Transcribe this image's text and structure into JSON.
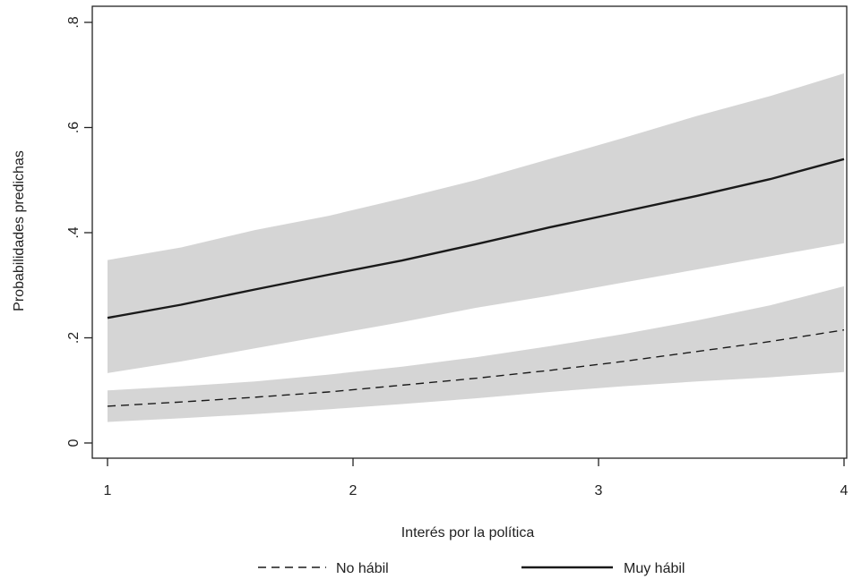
{
  "chart_data": {
    "type": "line",
    "xlabel": "Interés por la política",
    "ylabel": "Probabilidades predichas",
    "xlim": [
      1,
      4
    ],
    "ylim": [
      0,
      0.8
    ],
    "x_ticks": [
      1,
      2,
      3,
      4
    ],
    "x_tick_labels": [
      "1",
      "2",
      "3",
      "4"
    ],
    "y_ticks": [
      0,
      0.2,
      0.4,
      0.6,
      0.8
    ],
    "y_tick_labels": [
      "0",
      ".2",
      ".4",
      ".6",
      ".8"
    ],
    "grid": false,
    "legend_position": "bottom",
    "band_color": "#d5d5d5",
    "line_color": "#1a1a1a",
    "series": [
      {
        "name": "No hábil",
        "style": "dashed",
        "x": [
          1,
          1.3,
          1.6,
          1.9,
          2.2,
          2.5,
          2.8,
          3.1,
          3.4,
          3.7,
          4
        ],
        "values": [
          0.07,
          0.078,
          0.087,
          0.097,
          0.11,
          0.123,
          0.138,
          0.155,
          0.174,
          0.193,
          0.215
        ],
        "lower": [
          0.04,
          0.047,
          0.055,
          0.064,
          0.074,
          0.085,
          0.097,
          0.108,
          0.117,
          0.125,
          0.135
        ],
        "upper": [
          0.1,
          0.108,
          0.117,
          0.13,
          0.145,
          0.163,
          0.184,
          0.207,
          0.233,
          0.262,
          0.298
        ]
      },
      {
        "name": "Muy hábil",
        "style": "solid",
        "x": [
          1,
          1.3,
          1.6,
          1.9,
          2.2,
          2.5,
          2.8,
          3.1,
          3.4,
          3.7,
          4
        ],
        "values": [
          0.238,
          0.263,
          0.292,
          0.32,
          0.347,
          0.378,
          0.41,
          0.44,
          0.47,
          0.502,
          0.54
        ],
        "lower": [
          0.133,
          0.155,
          0.18,
          0.205,
          0.23,
          0.257,
          0.28,
          0.305,
          0.33,
          0.355,
          0.38
        ],
        "upper": [
          0.348,
          0.372,
          0.405,
          0.432,
          0.465,
          0.5,
          0.54,
          0.58,
          0.622,
          0.66,
          0.703
        ]
      }
    ]
  }
}
